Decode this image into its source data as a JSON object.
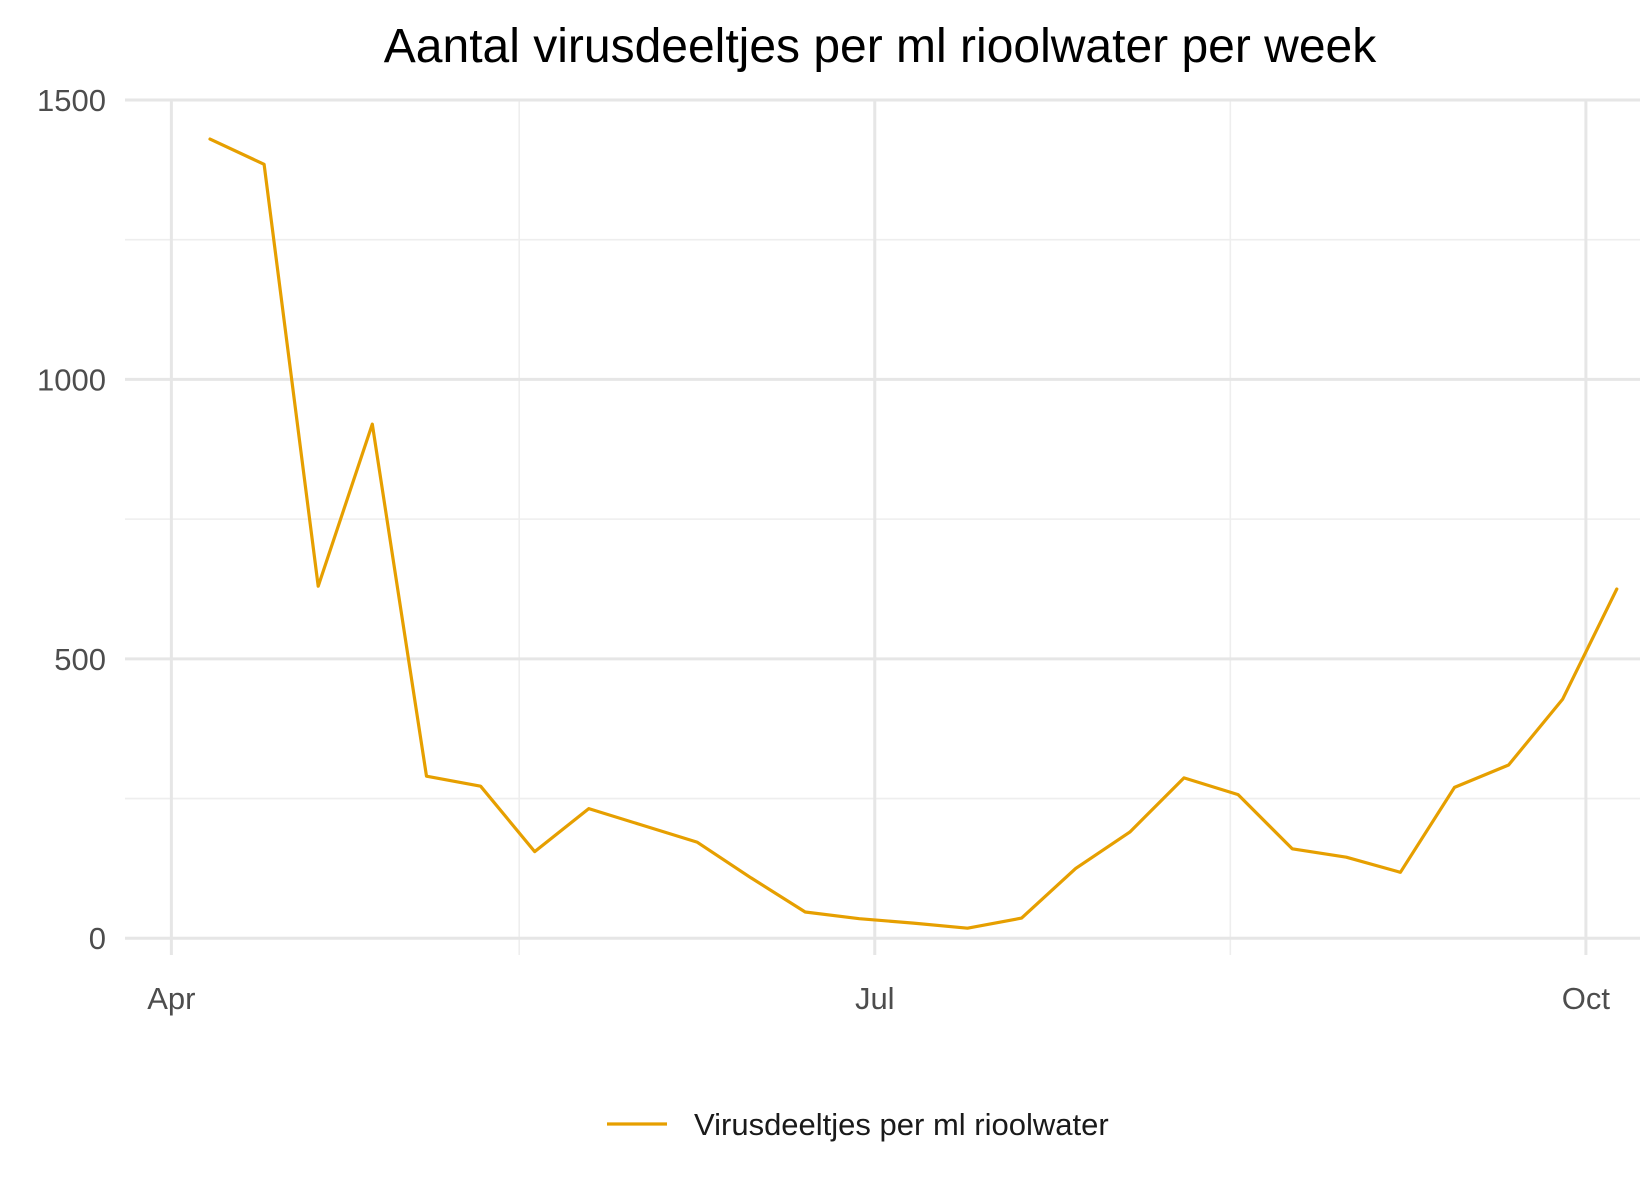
{
  "chart_data": {
    "type": "line",
    "title": "Aantal virusdeeltjes per ml rioolwater per week",
    "xlabel": "",
    "ylabel": "",
    "x_ticks": [
      {
        "label": "Apr",
        "date": "2020-04-01"
      },
      {
        "label": "Jul",
        "date": "2020-07-01"
      },
      {
        "label": "Oct",
        "date": "2020-10-01"
      }
    ],
    "x_minor_ticks": [
      "2020-05-16",
      "2020-08-16"
    ],
    "y_ticks": [
      0,
      500,
      1000,
      1500
    ],
    "y_minor_ticks": [
      250,
      750,
      1250
    ],
    "xlim": [
      "2020-03-26",
      "2020-10-08"
    ],
    "ylim": [
      -30,
      1500
    ],
    "grid": true,
    "legend_position": "bottom",
    "series": [
      {
        "name": "Virusdeeltjes per ml rioolwater",
        "color": "#E69F00",
        "points": [
          {
            "x": "2020-04-06",
            "y": 1430
          },
          {
            "x": "2020-04-13",
            "y": 1385
          },
          {
            "x": "2020-04-20",
            "y": 630
          },
          {
            "x": "2020-04-27",
            "y": 920
          },
          {
            "x": "2020-05-04",
            "y": 290
          },
          {
            "x": "2020-05-11",
            "y": 272
          },
          {
            "x": "2020-05-18",
            "y": 155
          },
          {
            "x": "2020-05-25",
            "y": 232
          },
          {
            "x": "2020-06-01",
            "y": 202
          },
          {
            "x": "2020-06-08",
            "y": 172
          },
          {
            "x": "2020-06-15",
            "y": 108
          },
          {
            "x": "2020-06-22",
            "y": 47
          },
          {
            "x": "2020-06-29",
            "y": 35
          },
          {
            "x": "2020-07-06",
            "y": 27
          },
          {
            "x": "2020-07-13",
            "y": 18
          },
          {
            "x": "2020-07-20",
            "y": 36
          },
          {
            "x": "2020-07-27",
            "y": 125
          },
          {
            "x": "2020-08-03",
            "y": 190
          },
          {
            "x": "2020-08-10",
            "y": 287
          },
          {
            "x": "2020-08-17",
            "y": 257
          },
          {
            "x": "2020-08-24",
            "y": 160
          },
          {
            "x": "2020-08-31",
            "y": 145
          },
          {
            "x": "2020-09-07",
            "y": 118
          },
          {
            "x": "2020-09-14",
            "y": 270
          },
          {
            "x": "2020-09-21",
            "y": 310
          },
          {
            "x": "2020-09-28",
            "y": 428
          },
          {
            "x": "2020-10-05",
            "y": 625
          }
        ]
      }
    ]
  }
}
